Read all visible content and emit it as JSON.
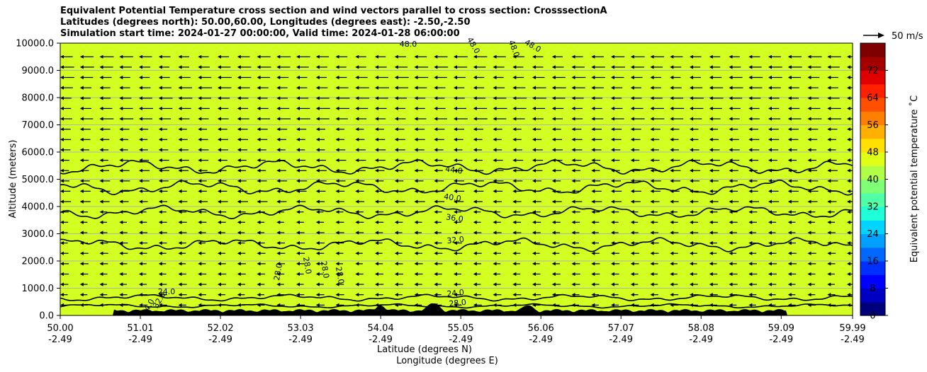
{
  "chart_data": {
    "type": "contourf",
    "title_lines": [
      "Equivalent Potential Temperature cross section and wind vectors parallel to cross section: CrosssectionA",
      "Latitudes (degrees north): 50.00,60.00, Longitudes (degrees east): -2.50,-2.50",
      "Simulation start time: 2024-01-27 00:00:00, Valid time: 2024-01-28 06:00:00"
    ],
    "ylabel": "Altitude (meters)",
    "xlabel_lines": [
      "Latitude (degrees N)",
      "Longitude (degrees E)"
    ],
    "ylim": [
      0,
      10000
    ],
    "xlim": [
      50.0,
      59.99
    ],
    "y_ticks": [
      "0.0",
      "1000.0",
      "2000.0",
      "3000.0",
      "4000.0",
      "5000.0",
      "6000.0",
      "7000.0",
      "8000.0",
      "9000.0",
      "10000.0"
    ],
    "x_ticks": [
      {
        "lat": "50.00",
        "lon": "-2.49"
      },
      {
        "lat": "51.01",
        "lon": "-2.49"
      },
      {
        "lat": "52.02",
        "lon": "-2.49"
      },
      {
        "lat": "53.03",
        "lon": "-2.49"
      },
      {
        "lat": "54.04",
        "lon": "-2.49"
      },
      {
        "lat": "55.05",
        "lon": "-2.49"
      },
      {
        "lat": "56.06",
        "lon": "-2.49"
      },
      {
        "lat": "57.07",
        "lon": "-2.49"
      },
      {
        "lat": "58.08",
        "lon": "-2.49"
      },
      {
        "lat": "59.09",
        "lon": "-2.49"
      },
      {
        "lat": "59.99",
        "lon": "-2.49"
      }
    ],
    "colorbar": {
      "label": "Equivalent potential temperature ˚C",
      "range": [
        0,
        80
      ],
      "ticks": [
        "0",
        "8",
        "16",
        "24",
        "32",
        "40",
        "48",
        "56",
        "64",
        "72"
      ]
    },
    "contour_labels": [
      "44.0",
      "40.0",
      "36.0",
      "32.0",
      "28.0",
      "28.0",
      "24.0",
      "24.0",
      "28.0",
      "28.0",
      "28.0",
      "32.0",
      "24.0",
      "48.0",
      "48.0",
      "48.0",
      "48.0"
    ],
    "contour_levels": [
      {
        "level": 44,
        "base_alt": 5450
      },
      {
        "level": 40,
        "base_alt": 4700
      },
      {
        "level": 36,
        "base_alt": 3800
      },
      {
        "level": 32,
        "base_alt": 2600
      },
      {
        "level": 28,
        "base_alt": 650
      },
      {
        "level": 24,
        "base_alt": 350
      }
    ],
    "wind_reference": "50 m/s",
    "wind_direction": "southward (toward 50.00 N)"
  },
  "colors": {
    "upper_layer": "#d3ff22",
    "mid_layer": "#aaff4c",
    "lower_mid": "#53ffa4",
    "low": "#27ffd0",
    "cyan": "#00eaf8",
    "near_surface": "#00c0ff",
    "surface_blue": "#0090ff",
    "terrain": "#000000"
  }
}
